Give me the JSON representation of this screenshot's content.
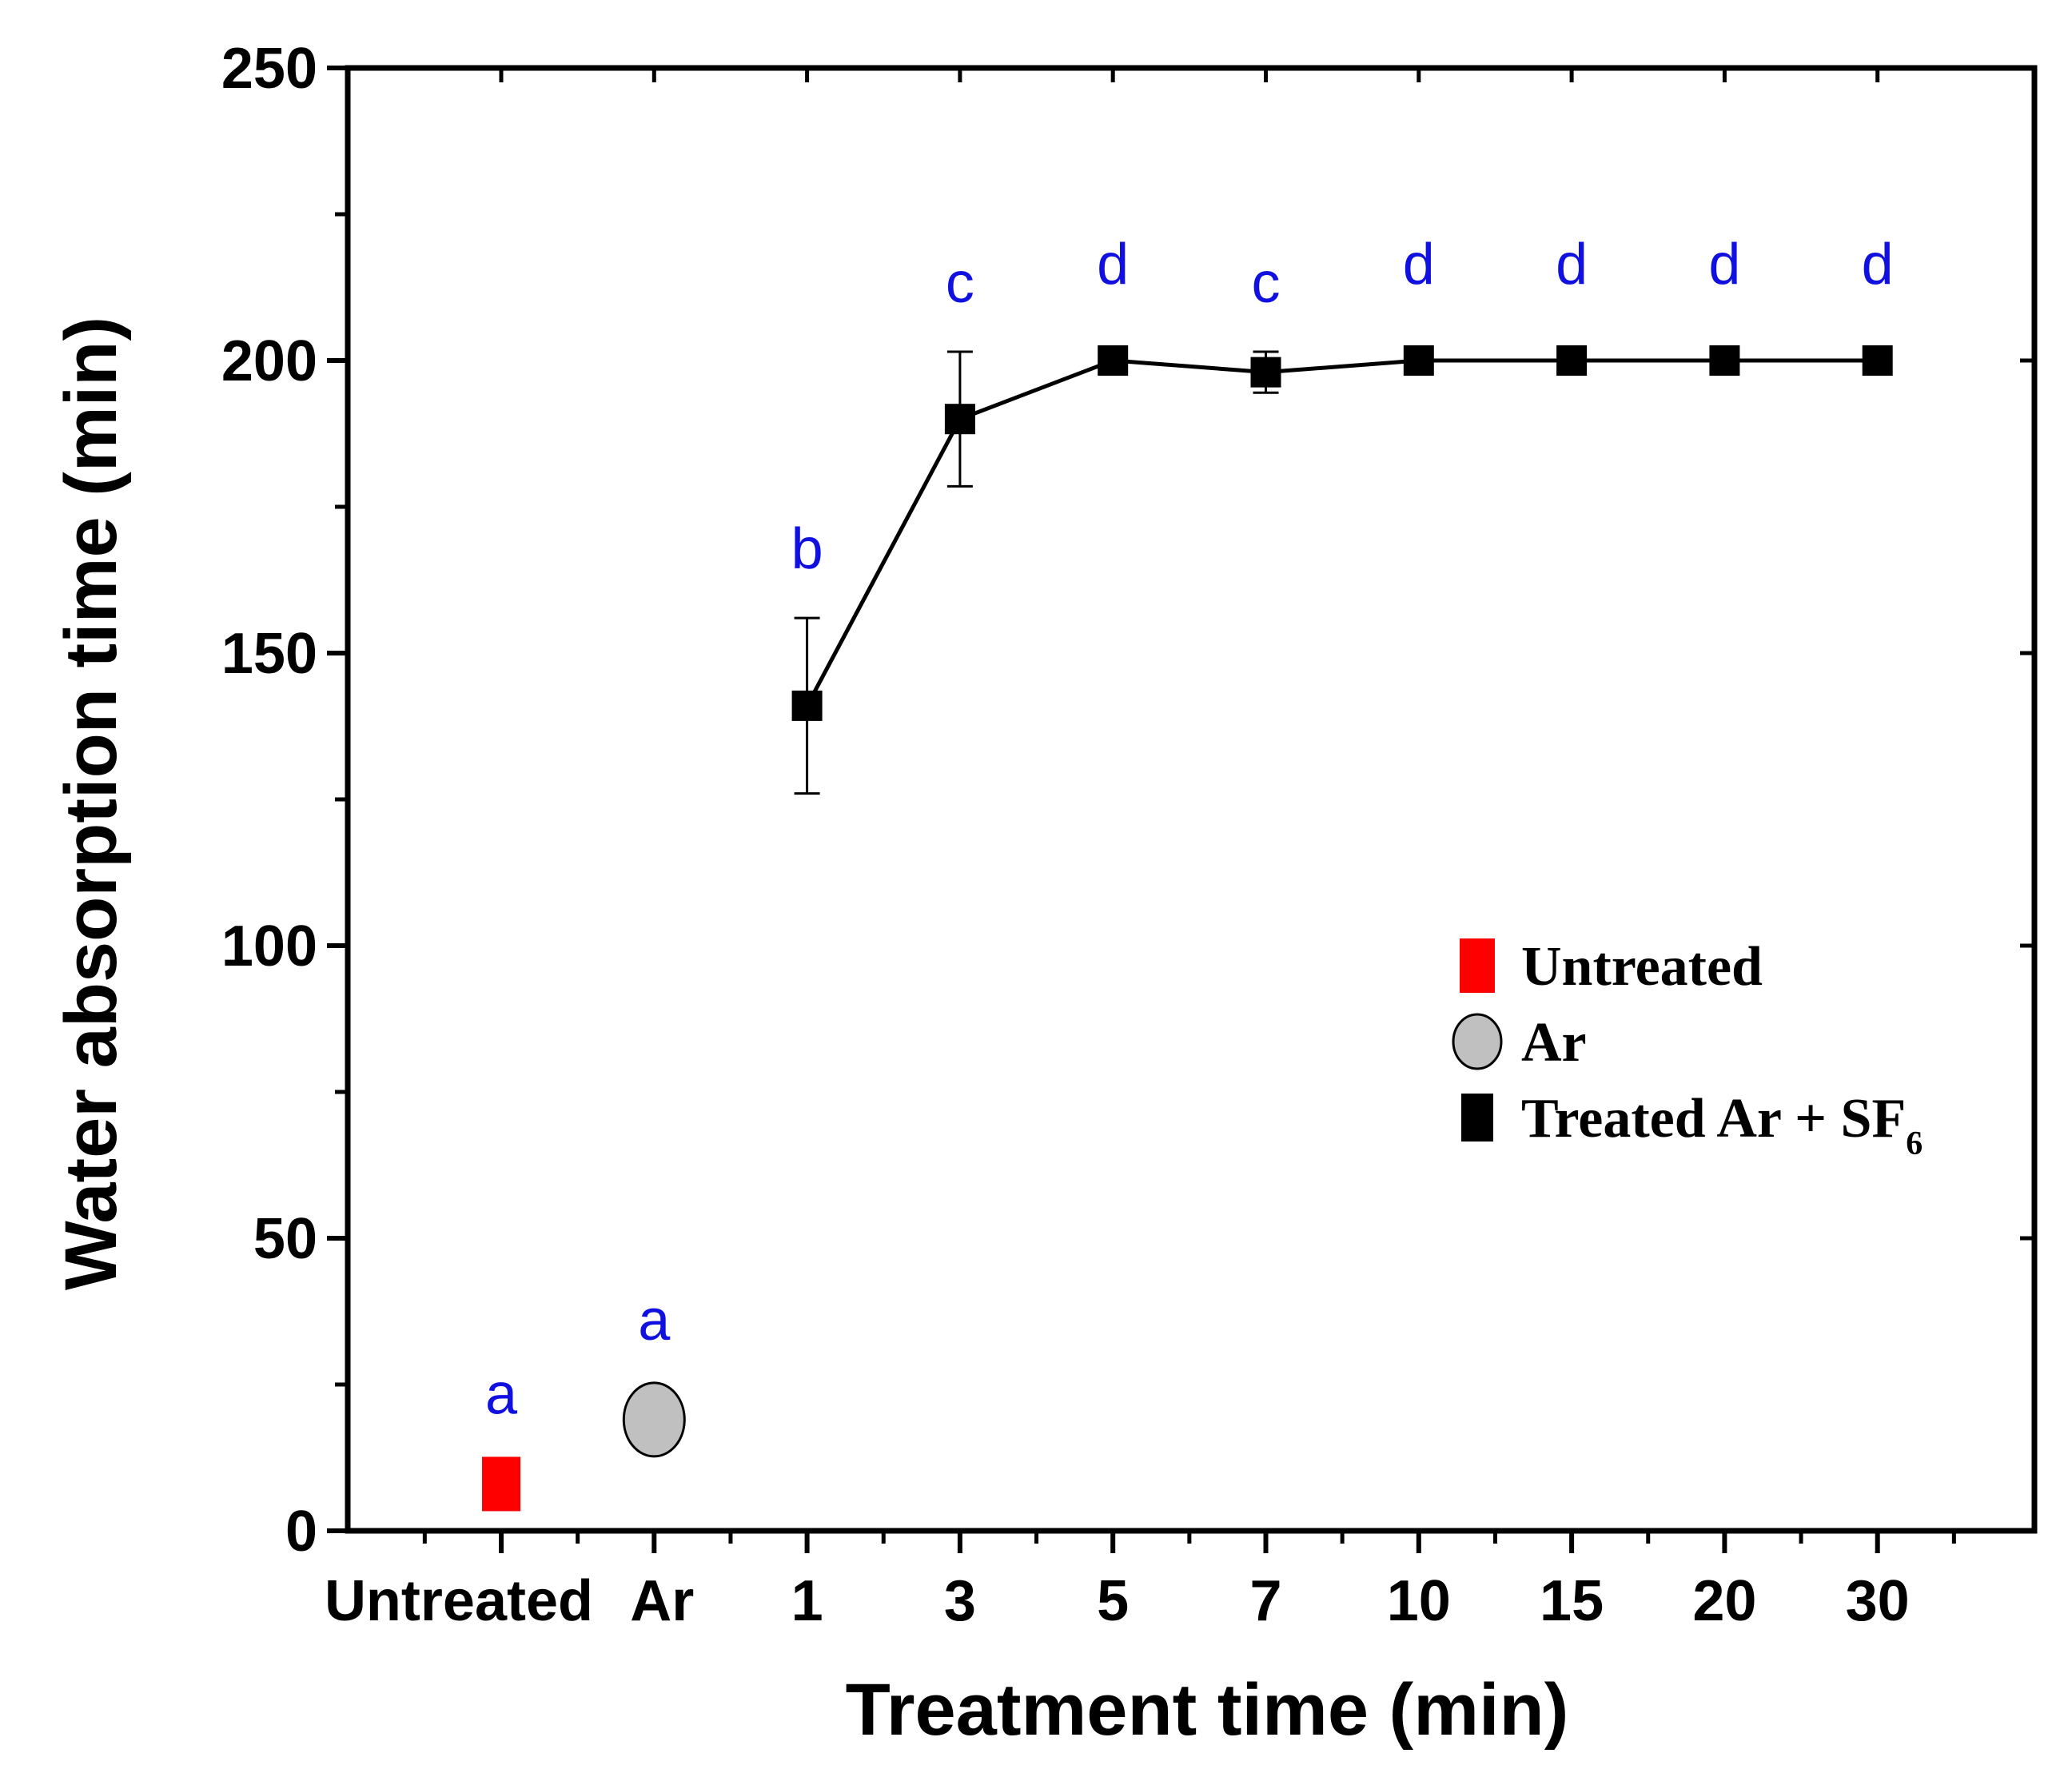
{
  "chart_data": {
    "type": "scatter",
    "title": "",
    "xlabel": "Treatment time (min)",
    "ylabel": "Water absorption time (min)",
    "ylim": [
      0,
      250
    ],
    "yticks": [
      0,
      50,
      100,
      150,
      200,
      250
    ],
    "categories": [
      "Untreated",
      "Ar",
      "1",
      "3",
      "5",
      "7",
      "10",
      "15",
      "20",
      "30"
    ],
    "grid": false,
    "legend_position": "center-right",
    "series": [
      {
        "name": "Untreated",
        "marker": "square",
        "color": "#ff0000",
        "connected": false,
        "points": [
          {
            "category": "Untreated",
            "value": 8,
            "error": 0,
            "label": "a"
          }
        ]
      },
      {
        "name": "Ar",
        "marker": "circle",
        "color": "#c0c0c0",
        "connected": false,
        "points": [
          {
            "category": "Ar",
            "value": 19,
            "error": 0,
            "label": "a"
          }
        ]
      },
      {
        "name": "Treated Ar + SF",
        "name_subscript": "6",
        "marker": "square",
        "color": "#000000",
        "connected": true,
        "points": [
          {
            "category": "1",
            "value": 141,
            "error": 15,
            "label": "b"
          },
          {
            "category": "3",
            "value": 190,
            "error": 11.5,
            "label": "c"
          },
          {
            "category": "5",
            "value": 200,
            "error": 0,
            "label": "d"
          },
          {
            "category": "7",
            "value": 198,
            "error": 3.5,
            "label": "c"
          },
          {
            "category": "10",
            "value": 200,
            "error": 0,
            "label": "d"
          },
          {
            "category": "15",
            "value": 200,
            "error": 0,
            "label": "d"
          },
          {
            "category": "20",
            "value": 200,
            "error": 0,
            "label": "d"
          },
          {
            "category": "30",
            "value": 200,
            "error": 0,
            "label": "d"
          }
        ]
      }
    ],
    "colors": {
      "significance_label": "#1010e0",
      "axis": "#000000"
    }
  }
}
